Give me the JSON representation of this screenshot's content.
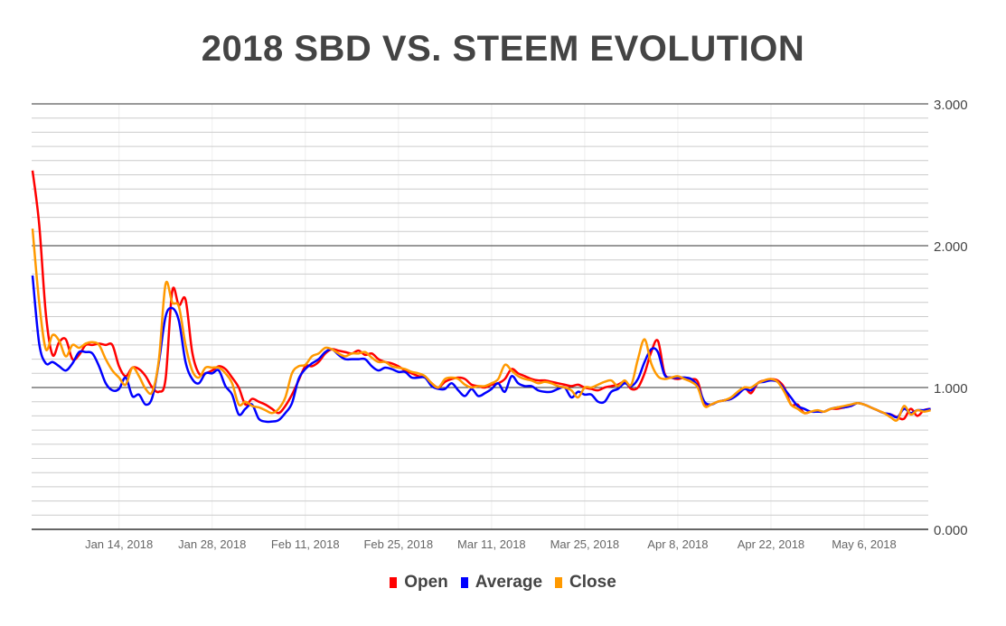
{
  "chart_data": {
    "type": "line",
    "title": "2018 SBD VS. STEEM EVOLUTION",
    "xlabel": "",
    "ylabel": "",
    "ylim": [
      0,
      3
    ],
    "y_ticks": [
      "0.000",
      "1.000",
      "2.000",
      "3.000"
    ],
    "x_ticks": [
      "Jan 14, 2018",
      "Jan 28, 2018",
      "Feb 11, 2018",
      "Feb 25, 2018",
      "Mar 11, 2018",
      "Mar 25, 2018",
      "Apr 8, 2018",
      "Apr 22, 2018",
      "May 6, 2018"
    ],
    "x_range": [
      "Jan 1, 2018",
      "May 15, 2018"
    ],
    "y_axis_position": "right",
    "grid": true,
    "smooth": true,
    "legend_position": "bottom",
    "series": [
      {
        "name": "Open",
        "color": "#ff0000",
        "values": [
          2.53,
          2.15,
          1.52,
          1.23,
          1.32,
          1.34,
          1.2,
          1.23,
          1.3,
          1.3,
          1.31,
          1.3,
          1.3,
          1.15,
          1.08,
          1.14,
          1.13,
          1.08,
          1.0,
          0.97,
          1.06,
          1.68,
          1.58,
          1.62,
          1.25,
          1.1,
          1.1,
          1.12,
          1.15,
          1.13,
          1.07,
          1.0,
          0.88,
          0.92,
          0.9,
          0.88,
          0.85,
          0.82,
          0.87,
          0.95,
          1.05,
          1.15,
          1.15,
          1.18,
          1.24,
          1.27,
          1.26,
          1.25,
          1.24,
          1.26,
          1.23,
          1.24,
          1.2,
          1.18,
          1.17,
          1.15,
          1.12,
          1.1,
          1.08,
          1.07,
          1.03,
          1.0,
          1.04,
          1.06,
          1.07,
          1.06,
          1.02,
          1.01,
          1.0,
          1.02,
          1.03,
          1.06,
          1.13,
          1.1,
          1.08,
          1.06,
          1.05,
          1.05,
          1.04,
          1.03,
          1.02,
          1.01,
          1.02,
          1.0,
          0.99,
          0.98,
          1.0,
          1.01,
          1.02,
          1.04,
          0.99,
          1.0,
          1.1,
          1.25,
          1.33,
          1.1,
          1.07,
          1.06,
          1.07,
          1.06,
          1.04,
          0.88,
          0.88,
          0.9,
          0.91,
          0.92,
          0.95,
          1.0,
          0.96,
          1.03,
          1.05,
          1.06,
          1.05,
          1.0,
          0.88,
          0.88,
          0.82,
          0.83,
          0.83,
          0.83,
          0.85,
          0.85,
          0.86,
          0.87,
          0.89,
          0.88,
          0.86,
          0.84,
          0.82,
          0.81,
          0.79,
          0.78,
          0.85,
          0.8,
          0.84,
          0.85
        ]
      },
      {
        "name": "Average",
        "color": "#0000ff",
        "values": [
          1.79,
          1.31,
          1.17,
          1.18,
          1.15,
          1.12,
          1.17,
          1.25,
          1.25,
          1.24,
          1.15,
          1.03,
          0.98,
          0.99,
          1.07,
          0.94,
          0.95,
          0.88,
          0.93,
          1.18,
          1.5,
          1.56,
          1.47,
          1.18,
          1.06,
          1.03,
          1.1,
          1.1,
          1.12,
          1.01,
          0.95,
          0.81,
          0.85,
          0.88,
          0.78,
          0.76,
          0.76,
          0.77,
          0.82,
          0.89,
          1.06,
          1.13,
          1.17,
          1.2,
          1.25,
          1.27,
          1.23,
          1.2,
          1.2,
          1.2,
          1.2,
          1.15,
          1.12,
          1.14,
          1.13,
          1.11,
          1.11,
          1.07,
          1.07,
          1.07,
          1.01,
          0.99,
          0.99,
          1.03,
          0.98,
          0.94,
          0.99,
          0.94,
          0.96,
          0.99,
          1.03,
          0.97,
          1.08,
          1.03,
          1.01,
          1.01,
          0.98,
          0.97,
          0.97,
          0.99,
          1.0,
          0.93,
          0.97,
          0.95,
          0.95,
          0.9,
          0.9,
          0.97,
          0.99,
          1.03,
          1.01,
          1.06,
          1.18,
          1.27,
          1.25,
          1.09,
          1.07,
          1.07,
          1.07,
          1.06,
          1.01,
          0.9,
          0.88,
          0.9,
          0.91,
          0.92,
          0.95,
          0.99,
          0.98,
          1.03,
          1.04,
          1.05,
          1.04,
          0.99,
          0.93,
          0.87,
          0.85,
          0.83,
          0.83,
          0.83,
          0.85,
          0.86,
          0.86,
          0.87,
          0.89,
          0.88,
          0.86,
          0.84,
          0.82,
          0.81,
          0.79,
          0.85,
          0.82,
          0.84,
          0.84,
          0.85
        ]
      },
      {
        "name": "Close",
        "color": "#ff9900",
        "values": [
          2.12,
          1.6,
          1.27,
          1.37,
          1.33,
          1.22,
          1.3,
          1.28,
          1.31,
          1.32,
          1.3,
          1.2,
          1.12,
          1.07,
          1.02,
          1.14,
          1.08,
          0.99,
          0.97,
          1.2,
          1.73,
          1.6,
          1.57,
          1.3,
          1.12,
          1.07,
          1.14,
          1.14,
          1.14,
          1.1,
          1.03,
          0.88,
          0.9,
          0.87,
          0.86,
          0.84,
          0.82,
          0.85,
          0.93,
          1.1,
          1.15,
          1.16,
          1.22,
          1.24,
          1.28,
          1.27,
          1.24,
          1.22,
          1.24,
          1.24,
          1.25,
          1.21,
          1.18,
          1.18,
          1.15,
          1.14,
          1.13,
          1.11,
          1.1,
          1.08,
          1.03,
          1.0,
          1.06,
          1.07,
          1.06,
          1.02,
          1.0,
          1.01,
          1.01,
          1.03,
          1.06,
          1.16,
          1.12,
          1.08,
          1.06,
          1.05,
          1.03,
          1.04,
          1.03,
          1.01,
          1.0,
          0.98,
          0.93,
          1.0,
          1.0,
          1.02,
          1.04,
          1.05,
          1.01,
          1.05,
          1.02,
          1.2,
          1.34,
          1.17,
          1.08,
          1.06,
          1.07,
          1.08,
          1.06,
          1.04,
          1.0,
          0.87,
          0.88,
          0.9,
          0.91,
          0.93,
          0.97,
          1.0,
          1.0,
          1.03,
          1.05,
          1.06,
          1.04,
          0.97,
          0.88,
          0.85,
          0.82,
          0.83,
          0.84,
          0.83,
          0.85,
          0.86,
          0.87,
          0.88,
          0.89,
          0.88,
          0.86,
          0.84,
          0.82,
          0.79,
          0.77,
          0.87,
          0.81,
          0.84,
          0.83,
          0.84
        ]
      }
    ]
  }
}
